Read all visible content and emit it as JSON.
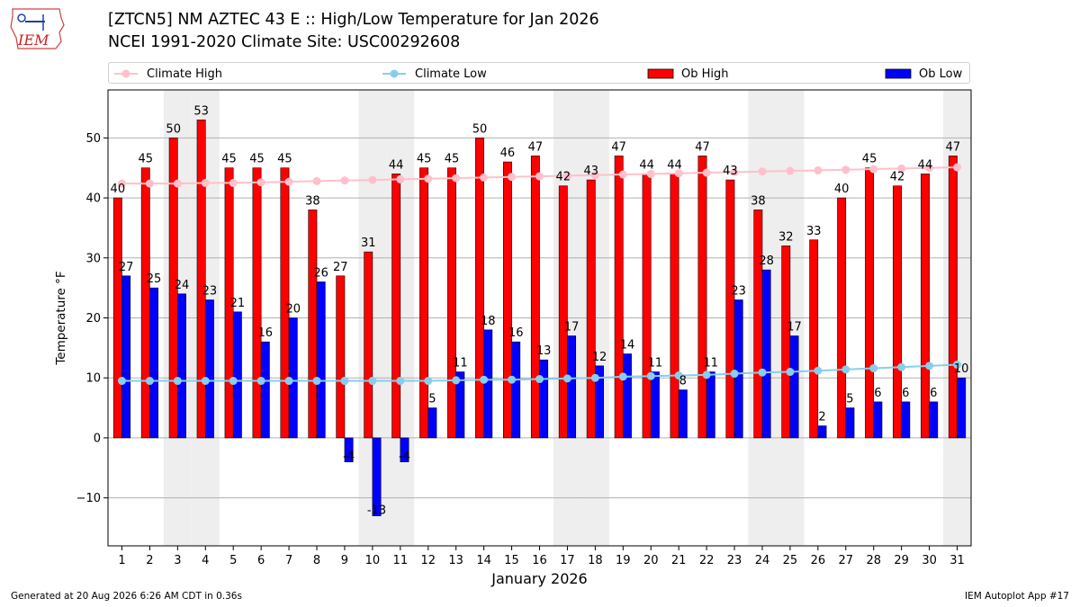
{
  "header": {
    "title_line1": "[ZTCN5] NM AZTEC 43 E :: High/Low Temperature for Jan 2026",
    "title_line2": "NCEI 1991-2020 Climate Site: USC00292608",
    "logo_text": "IEM"
  },
  "legend": {
    "climate_high": "Climate High",
    "climate_low": "Climate Low",
    "ob_high": "Ob High",
    "ob_low": "Ob Low"
  },
  "footer": {
    "generated": "Generated at 20 Aug 2026 6:26 AM CDT in 0.36s",
    "app": "IEM Autoplot App #17"
  },
  "colors": {
    "ob_high": "#ff0000",
    "ob_low": "#0000ff",
    "climate_high": "#ffc0cb",
    "climate_low": "#87ceeb",
    "weekend_shade": "#eeeeee"
  },
  "chart_data": {
    "type": "bar",
    "xlabel": "January 2026",
    "ylabel": "Temperature °F",
    "ylim": [
      -18,
      58
    ],
    "yticks": [
      -10,
      0,
      10,
      20,
      30,
      40,
      50
    ],
    "grid": true,
    "legend_placement": "top",
    "categories": [
      "1",
      "2",
      "3",
      "4",
      "5",
      "6",
      "7",
      "8",
      "9",
      "10",
      "11",
      "12",
      "13",
      "14",
      "15",
      "16",
      "17",
      "18",
      "19",
      "20",
      "21",
      "22",
      "23",
      "24",
      "25",
      "26",
      "27",
      "28",
      "29",
      "30",
      "31"
    ],
    "shaded_weekend_days": [
      3,
      4,
      10,
      11,
      17,
      18,
      24,
      25,
      31
    ],
    "series": [
      {
        "name": "Ob High",
        "kind": "bar",
        "values": [
          40,
          45,
          50,
          53,
          45,
          45,
          45,
          38,
          27,
          31,
          44,
          45,
          45,
          50,
          46,
          47,
          42,
          43,
          47,
          44,
          44,
          47,
          43,
          38,
          32,
          33,
          40,
          45,
          42,
          44,
          47
        ]
      },
      {
        "name": "Ob Low",
        "kind": "bar",
        "values": [
          27,
          25,
          24,
          23,
          21,
          16,
          20,
          26,
          -4,
          -13,
          -4,
          5,
          11,
          18,
          16,
          13,
          17,
          12,
          14,
          11,
          8,
          11,
          23,
          28,
          17,
          2,
          5,
          6,
          6,
          6,
          10
        ]
      },
      {
        "name": "Climate High",
        "kind": "line",
        "values": [
          42.4,
          42.4,
          42.4,
          42.5,
          42.5,
          42.6,
          42.7,
          42.8,
          42.9,
          43.0,
          43.1,
          43.2,
          43.3,
          43.4,
          43.5,
          43.6,
          43.7,
          43.8,
          43.9,
          44.0,
          44.1,
          44.2,
          44.3,
          44.4,
          44.5,
          44.6,
          44.7,
          44.8,
          44.9,
          45.0,
          45.1
        ]
      },
      {
        "name": "Climate Low",
        "kind": "line",
        "values": [
          9.5,
          9.5,
          9.5,
          9.5,
          9.5,
          9.5,
          9.5,
          9.5,
          9.5,
          9.5,
          9.5,
          9.5,
          9.6,
          9.7,
          9.7,
          9.8,
          9.9,
          10.0,
          10.2,
          10.3,
          10.4,
          10.5,
          10.7,
          10.9,
          11.0,
          11.2,
          11.4,
          11.6,
          11.8,
          12.0,
          12.2
        ]
      }
    ]
  }
}
